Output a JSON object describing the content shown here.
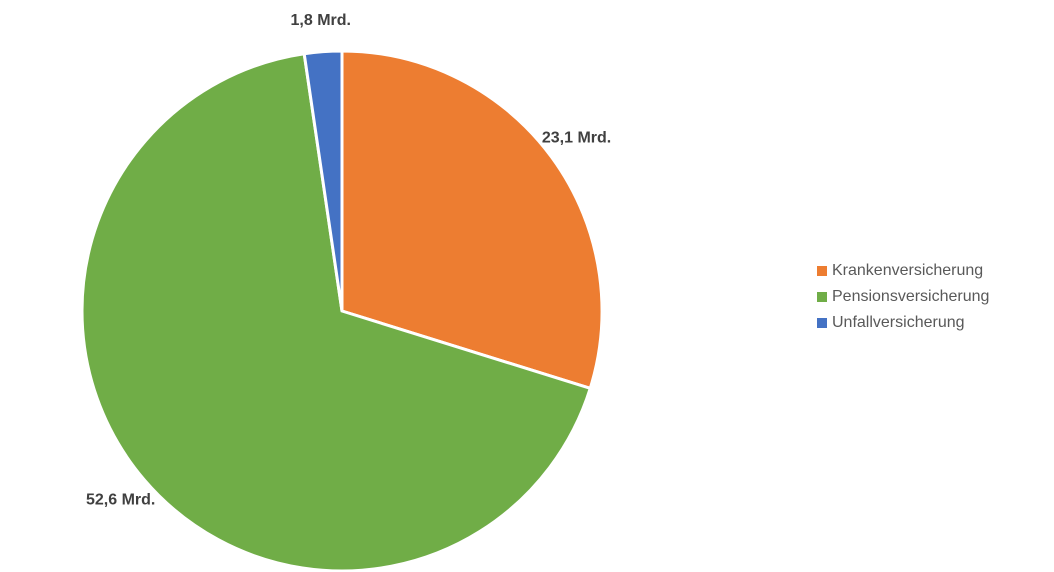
{
  "chart_data": {
    "type": "pie",
    "categories": [
      "Krankenversicherung",
      "Pensionsversicherung",
      "Unfallversicherung"
    ],
    "values": [
      23.1,
      52.6,
      1.8
    ],
    "value_labels": [
      "23,1 Mrd.",
      "52,6 Mrd.",
      "1,8 Mrd."
    ],
    "colors": [
      "#ed7d31",
      "#70ad47",
      "#4472c4"
    ],
    "legend": "right"
  }
}
